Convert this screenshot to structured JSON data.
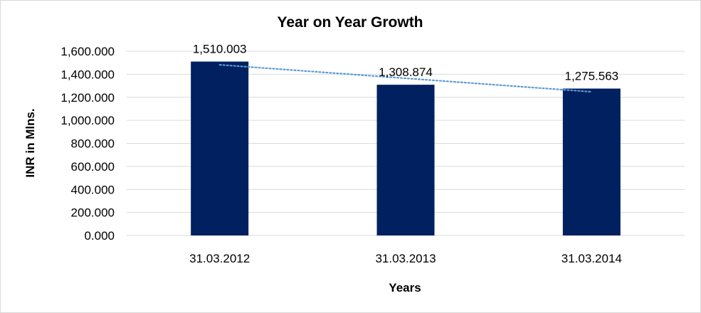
{
  "chart_data": {
    "type": "bar",
    "title": "Year on Year Growth",
    "xlabel": "Years",
    "ylabel": "INR in Mlns.",
    "categories": [
      "31.03.2012",
      "31.03.2013",
      "31.03.2014"
    ],
    "values": [
      1510.003,
      1308.874,
      1275.563
    ],
    "data_labels": [
      "1,510.003",
      "1,308.874",
      "1,275.563"
    ],
    "ylim": [
      0,
      1600
    ],
    "yticks": [
      0,
      200,
      400,
      600,
      800,
      1000,
      1200,
      1400,
      1600
    ],
    "ytick_labels": [
      "0.000",
      "200.000",
      "400.000",
      "600.000",
      "800.000",
      "1,000.000",
      "1,200.000",
      "1,400.000",
      "1,600.000"
    ],
    "grid": true,
    "legend": false,
    "trendline": "linear",
    "colors": {
      "bar": "#002060",
      "trendline": "#5b9bd5",
      "grid": "#d9d9d9"
    }
  }
}
